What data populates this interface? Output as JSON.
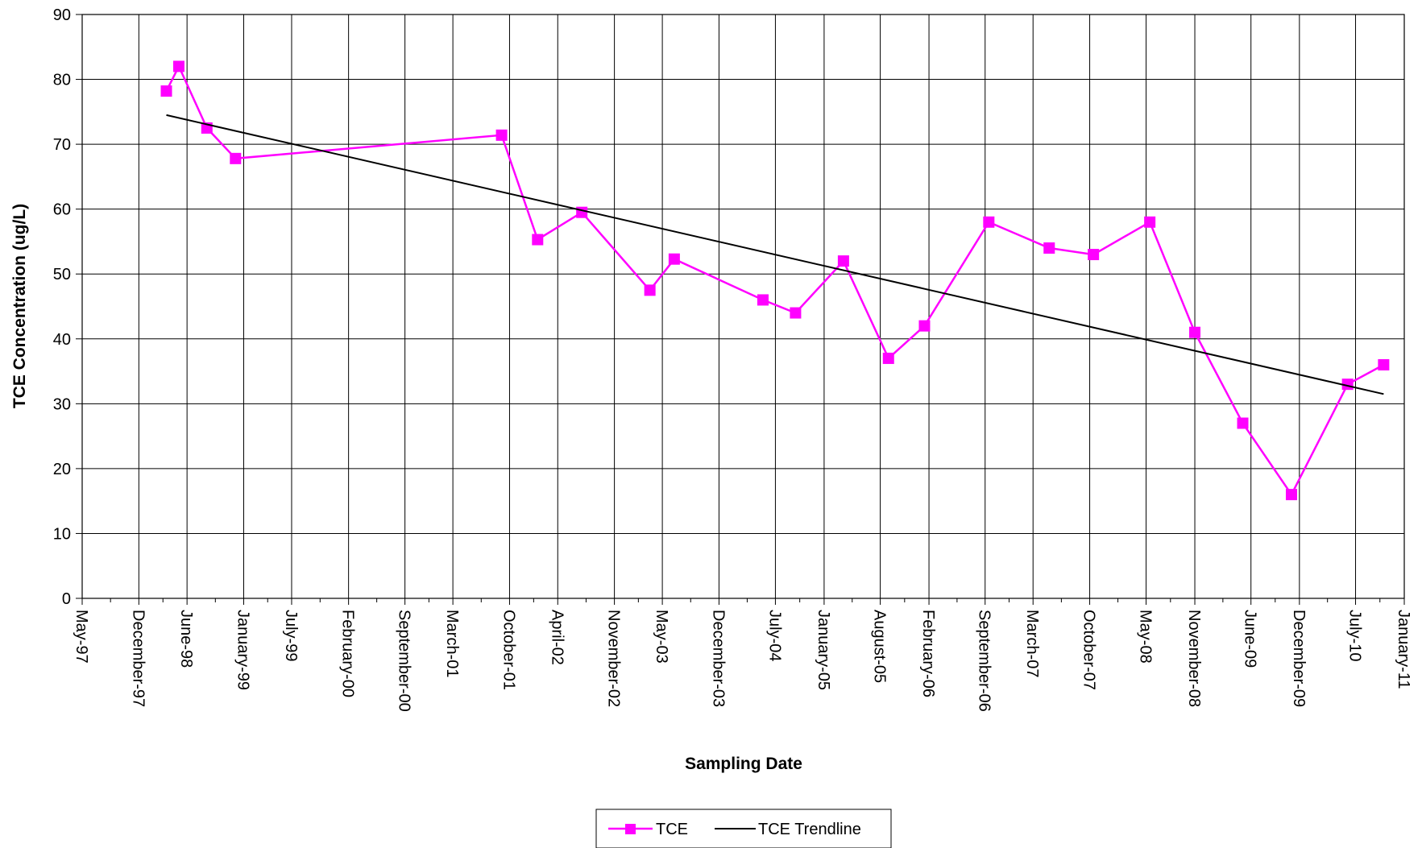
{
  "chart_data": {
    "type": "line",
    "xlabel": "Sampling Date",
    "ylabel": "TCE Concentration (ug/L)",
    "ylim": [
      0,
      90
    ],
    "y_ticks": [
      0,
      10,
      20,
      30,
      40,
      50,
      60,
      70,
      80,
      90
    ],
    "xlim": [
      "1997-05-01",
      "2011-01-01"
    ],
    "x_ticks": [
      {
        "date": "1997-05-01",
        "label": "May-97"
      },
      {
        "date": "1997-12-01",
        "label": "December-97"
      },
      {
        "date": "1998-06-01",
        "label": "June-98"
      },
      {
        "date": "1999-01-01",
        "label": "January-99"
      },
      {
        "date": "1999-07-01",
        "label": "July-99"
      },
      {
        "date": "2000-02-01",
        "label": "February-00"
      },
      {
        "date": "2000-09-01",
        "label": "September-00"
      },
      {
        "date": "2001-03-01",
        "label": "March-01"
      },
      {
        "date": "2001-10-01",
        "label": "October-01"
      },
      {
        "date": "2002-04-01",
        "label": "April-02"
      },
      {
        "date": "2002-11-01",
        "label": "November-02"
      },
      {
        "date": "2003-05-01",
        "label": "May-03"
      },
      {
        "date": "2003-12-01",
        "label": "December-03"
      },
      {
        "date": "2004-07-01",
        "label": "July-04"
      },
      {
        "date": "2005-01-01",
        "label": "January-05"
      },
      {
        "date": "2005-08-01",
        "label": "August-05"
      },
      {
        "date": "2006-02-01",
        "label": "February-06"
      },
      {
        "date": "2006-09-01",
        "label": "September-06"
      },
      {
        "date": "2007-03-01",
        "label": "March-07"
      },
      {
        "date": "2007-10-01",
        "label": "October-07"
      },
      {
        "date": "2008-05-01",
        "label": "May-08"
      },
      {
        "date": "2008-11-01",
        "label": "November-08"
      },
      {
        "date": "2009-06-01",
        "label": "June-09"
      },
      {
        "date": "2009-12-01",
        "label": "December-09"
      },
      {
        "date": "2010-07-01",
        "label": "July-10"
      },
      {
        "date": "2011-01-01",
        "label": "January-11"
      }
    ],
    "grid": true,
    "legend_position": "bottom",
    "series": [
      {
        "name": "TCE",
        "color": "#ff00ff",
        "marker": "square",
        "points": [
          {
            "x": "1998-03-15",
            "y": 78.2
          },
          {
            "x": "1998-05-01",
            "y": 82
          },
          {
            "x": "1998-08-15",
            "y": 72.5
          },
          {
            "x": "1998-12-01",
            "y": 67.8
          },
          {
            "x": "2001-09-01",
            "y": 71.4
          },
          {
            "x": "2002-01-15",
            "y": 55.3
          },
          {
            "x": "2002-07-01",
            "y": 59.5
          },
          {
            "x": "2003-03-15",
            "y": 47.5
          },
          {
            "x": "2003-06-15",
            "y": 52.3
          },
          {
            "x": "2004-05-15",
            "y": 46
          },
          {
            "x": "2004-09-15",
            "y": 44
          },
          {
            "x": "2005-03-15",
            "y": 52
          },
          {
            "x": "2005-09-01",
            "y": 37
          },
          {
            "x": "2006-01-15",
            "y": 42
          },
          {
            "x": "2006-09-15",
            "y": 58
          },
          {
            "x": "2007-05-01",
            "y": 54
          },
          {
            "x": "2007-10-15",
            "y": 53
          },
          {
            "x": "2008-05-15",
            "y": 58
          },
          {
            "x": "2008-11-01",
            "y": 41
          },
          {
            "x": "2009-05-01",
            "y": 27
          },
          {
            "x": "2009-11-01",
            "y": 16
          },
          {
            "x": "2010-06-01",
            "y": 33
          },
          {
            "x": "2010-10-15",
            "y": 36
          }
        ]
      },
      {
        "name": "TCE Trendline",
        "color": "#000000",
        "marker": "none",
        "points": [
          {
            "x": "1998-03-15",
            "y": 74.5
          },
          {
            "x": "2010-10-15",
            "y": 31.5
          }
        ]
      }
    ]
  }
}
